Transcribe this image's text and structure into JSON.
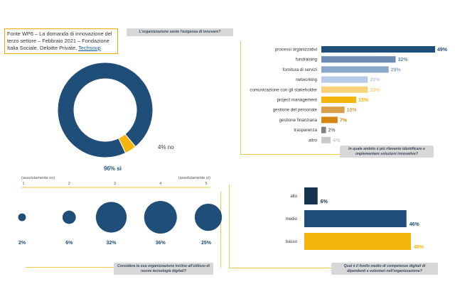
{
  "source_note": {
    "text": "Fonte WP6 – La domanda di innovazione del terzo settore – Febbraio 2021 – Fondazione Italia Sociale, Deloitte Private,",
    "link": "Techsoup"
  },
  "colors": {
    "navy": "#1f4e79",
    "yellow": "#f5b50e",
    "dark": "#17314f"
  },
  "chart_data": [
    {
      "id": "donut",
      "type": "pie",
      "title": "L'organizzazione sente l'esigenza di innovare?",
      "slices": [
        {
          "label": "sì",
          "value": 96,
          "display": "96% sì",
          "color": "#1f4e79"
        },
        {
          "label": "no",
          "value": 4,
          "display": "4% no",
          "color": "#f5b50e"
        }
      ]
    },
    {
      "id": "areas",
      "type": "bar",
      "orientation": "horizontal",
      "title": "In quale ambito è più rilevante identificare e implementare soluzioni innovative?",
      "categories": [
        "processi organizzativi",
        "fundraising",
        "fornitura di servizi",
        "networking",
        "comunicazione con gli stakeholder",
        "project management",
        "gestione del personale",
        "gestione finanziaria",
        "trasparenza",
        "altro"
      ],
      "values": [
        49,
        32,
        29,
        20,
        20,
        15,
        10,
        7,
        2,
        4
      ],
      "value_labels": [
        "49%",
        "32%",
        "29%",
        "20%",
        "20%",
        "15%",
        "10%",
        "7%",
        "2%",
        "4%"
      ],
      "colors": [
        "#1f4e79",
        "#6d8bb3",
        "#8aa7cc",
        "#b7cce6",
        "#f7d27a",
        "#f5b50e",
        "#d9a04b",
        "#d4870f",
        "#808080",
        "#c9c9c9"
      ],
      "label_colors": [
        "#1f4e79",
        "#6d8bb3",
        "#8aa7cc",
        "#b7cce6",
        "#f7d27a",
        "#f5b50e",
        "#d9a04b",
        "#d4870f",
        "#808080",
        "#c9c9c9"
      ],
      "xlim": [
        0,
        49
      ]
    },
    {
      "id": "scale",
      "type": "scatter",
      "title": "Considera la sua organizzazione incline all'utilizzo di nuove tecnologie digitali?",
      "scale_left": "(assolutamente no)",
      "scale_right": "(assolutamente sì)",
      "x": [
        1,
        2,
        3,
        4,
        5
      ],
      "tick_labels": [
        "1",
        "2",
        "3",
        "4",
        "5"
      ],
      "values": [
        2,
        6,
        32,
        36,
        25
      ],
      "value_labels": [
        "2%",
        "6%",
        "32%",
        "36%",
        "25%"
      ]
    },
    {
      "id": "competence",
      "type": "bar",
      "orientation": "horizontal",
      "title": "Qual è il livello medio di competenze digitali di dipendenti e volontari nell'organizzazione?",
      "categories": [
        "alto",
        "medio",
        "basso"
      ],
      "values": [
        6,
        46,
        48
      ],
      "value_labels": [
        "6%",
        "46%",
        "48%"
      ],
      "colors": [
        "#17314f",
        "#1f4e79",
        "#f5b50e"
      ],
      "label_colors": [
        "#17314f",
        "#1f4e79",
        "#f5b50e"
      ],
      "xlim": [
        0,
        48
      ]
    }
  ]
}
